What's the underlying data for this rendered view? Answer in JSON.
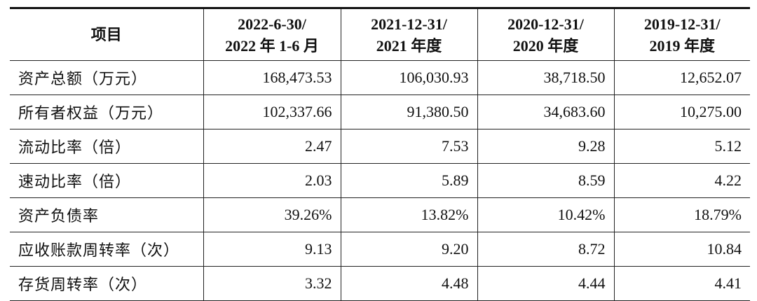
{
  "table": {
    "header": [
      [
        "项目"
      ],
      [
        "2022-6-30/",
        "2022 年 1-6 月"
      ],
      [
        "2021-12-31/",
        "2021 年度"
      ],
      [
        "2020-12-31/",
        "2020 年度"
      ],
      [
        "2019-12-31/",
        "2019 年度"
      ]
    ],
    "rows": [
      [
        "资产总额（万元）",
        "168,473.53",
        "106,030.93",
        "38,718.50",
        "12,652.07"
      ],
      [
        "所有者权益（万元）",
        "102,337.66",
        "91,380.50",
        "34,683.60",
        "10,275.00"
      ],
      [
        "流动比率（倍）",
        "2.47",
        "7.53",
        "9.28",
        "5.12"
      ],
      [
        "速动比率（倍）",
        "2.03",
        "5.89",
        "8.59",
        "4.22"
      ],
      [
        "资产负债率",
        "39.26%",
        "13.82%",
        "10.42%",
        "18.79%"
      ],
      [
        "应收账款周转率（次）",
        "9.13",
        "9.20",
        "8.72",
        "10.84"
      ],
      [
        "存货周转率（次）",
        "3.32",
        "4.48",
        "4.44",
        "4.41"
      ]
    ]
  }
}
